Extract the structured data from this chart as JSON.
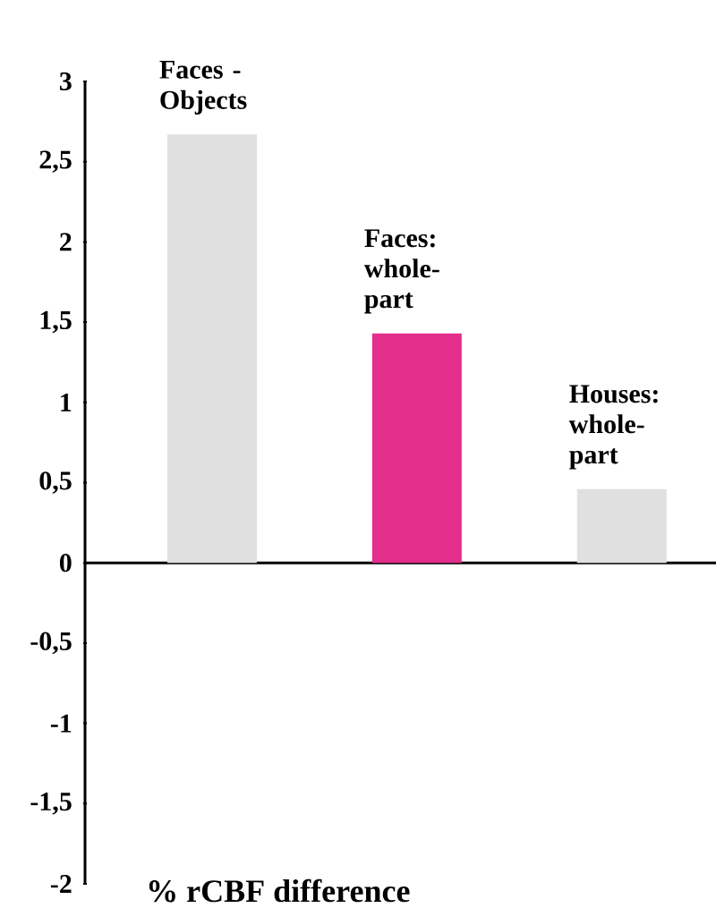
{
  "chart_data": {
    "type": "bar",
    "xlabel": "% rCBF difference",
    "categories": [
      "Faces - Objects",
      "Faces: whole-part",
      "Houses: whole-part"
    ],
    "values": [
      2.67,
      1.43,
      0.46
    ],
    "colors": [
      "#e0e0e0",
      "#e42e8c",
      "#e0e0e0"
    ],
    "ylim": [
      -2,
      3
    ],
    "yticks": [
      {
        "value": -2,
        "label": "-2"
      },
      {
        "value": -1.5,
        "label": "-1,5"
      },
      {
        "value": -1,
        "label": "-1"
      },
      {
        "value": -0.5,
        "label": "-0,5"
      },
      {
        "value": 0,
        "label": "0"
      },
      {
        "value": 0.5,
        "label": "0,5"
      },
      {
        "value": 1,
        "label": "1"
      },
      {
        "value": 1.5,
        "label": "1,5"
      },
      {
        "value": 2,
        "label": "2"
      },
      {
        "value": 2.5,
        "label": "2,5"
      },
      {
        "value": 3,
        "label": "3"
      }
    ]
  }
}
